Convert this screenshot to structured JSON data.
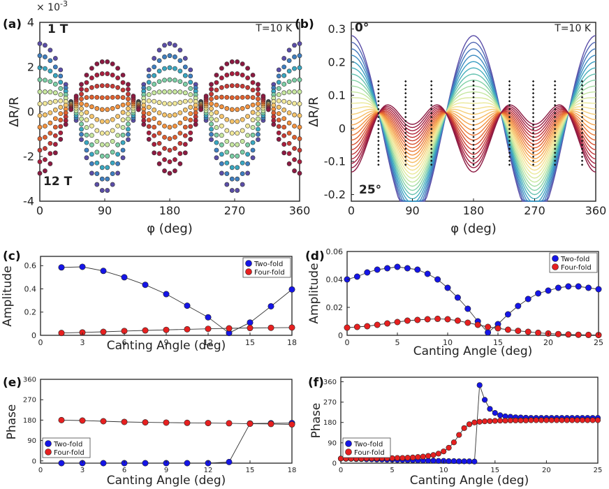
{
  "chart_data": [
    {
      "id": "a",
      "type": "scatter",
      "panel_label": "(a)",
      "xlabel": "φ (deg)",
      "ylabel": "ΔR/R",
      "multiplier": "× 10",
      "multiplier_exp": "-3",
      "xlim": [
        0,
        360
      ],
      "ylim": [
        -4,
        4
      ],
      "xticks": [
        "0",
        "90",
        "180",
        "270",
        "360"
      ],
      "yticks": [
        "-4",
        "-2",
        "0",
        "2",
        "4"
      ],
      "annotations": {
        "top_left": "1 T",
        "bottom_left": "12 T",
        "top_right": "T=10 K"
      },
      "colors": {
        "low_field": "#4a4a8c",
        "high_field": "#8b1a42"
      },
      "series_count": 12,
      "two_fold_amplitude_range": [
        3.3,
        -2.5
      ],
      "four_fold_amplitude": 0.9
    },
    {
      "id": "b",
      "type": "line",
      "panel_label": "(b)",
      "xlabel": "φ (deg)",
      "ylabel": "ΔR/R",
      "xlim": [
        0,
        360
      ],
      "ylim": [
        -0.22,
        0.32
      ],
      "xticks": [
        "0",
        "90",
        "180",
        "270",
        "360"
      ],
      "yticks": [
        "-0.2",
        "-0.1",
        "0",
        "0.1",
        "0.2",
        "0.3"
      ],
      "annotations": {
        "top_left": "0°",
        "bottom_left": "25°",
        "top_right": "T=10 K"
      },
      "colors": {
        "low_angle": "#5a5ab0",
        "high_angle": "#b0184a"
      },
      "series_count": 26
    },
    {
      "id": "c",
      "type": "line",
      "panel_label": "(c)",
      "xlabel": "Canting Angle (deg)",
      "ylabel": "Amplitude",
      "xlim": [
        0,
        18
      ],
      "ylim": [
        0,
        0.68
      ],
      "xticks": [
        "0",
        "3",
        "6",
        "9",
        "12",
        "15",
        "18"
      ],
      "yticks": [
        "0",
        "0.2",
        "0.4",
        "0.6"
      ],
      "legend_position": "top-right",
      "series": [
        {
          "name": "Two-fold",
          "color": "#1515e6",
          "x": [
            1.5,
            3,
            4.5,
            6,
            7.5,
            9,
            10.5,
            12,
            13.5,
            15,
            16.5,
            18
          ],
          "y": [
            0.585,
            0.59,
            0.555,
            0.5,
            0.435,
            0.355,
            0.255,
            0.155,
            0.02,
            0.11,
            0.25,
            0.395
          ]
        },
        {
          "name": "Four-fold",
          "color": "#e62020",
          "x": [
            1.5,
            3,
            4.5,
            6,
            7.5,
            9,
            10.5,
            12,
            13.5,
            15,
            16.5,
            18
          ],
          "y": [
            0.02,
            0.025,
            0.03,
            0.037,
            0.042,
            0.047,
            0.052,
            0.056,
            0.06,
            0.063,
            0.065,
            0.067
          ]
        }
      ]
    },
    {
      "id": "d",
      "type": "line",
      "panel_label": "(d)",
      "xlabel": "Canting Angle (deg)",
      "ylabel": "Amplitude",
      "xlim": [
        0,
        25
      ],
      "ylim": [
        0,
        0.06
      ],
      "xticks": [
        "0",
        "5",
        "10",
        "15",
        "20",
        "25"
      ],
      "yticks": [
        "0",
        "0.02",
        "0.04",
        "0.06"
      ],
      "legend_position": "top-right",
      "series": [
        {
          "name": "Two-fold",
          "color": "#1515e6",
          "x": [
            0,
            1,
            2,
            3,
            4,
            5,
            6,
            7,
            8,
            9,
            10,
            11,
            12,
            13,
            14,
            15,
            16,
            17,
            18,
            19,
            20,
            21,
            22,
            23,
            24,
            25
          ],
          "y": [
            0.04,
            0.042,
            0.045,
            0.047,
            0.048,
            0.049,
            0.048,
            0.047,
            0.044,
            0.04,
            0.034,
            0.027,
            0.019,
            0.01,
            0.002,
            0.008,
            0.015,
            0.021,
            0.026,
            0.03,
            0.032,
            0.034,
            0.035,
            0.035,
            0.034,
            0.033
          ]
        },
        {
          "name": "Four-fold",
          "color": "#e62020",
          "x": [
            0,
            1,
            2,
            3,
            4,
            5,
            6,
            7,
            8,
            9,
            10,
            11,
            12,
            13,
            14,
            15,
            16,
            17,
            18,
            19,
            20,
            21,
            22,
            23,
            24,
            25
          ],
          "y": [
            0.0055,
            0.006,
            0.0065,
            0.0075,
            0.0085,
            0.0095,
            0.0105,
            0.011,
            0.0115,
            0.0118,
            0.0115,
            0.0105,
            0.009,
            0.0075,
            0.006,
            0.005,
            0.004,
            0.0032,
            0.0025,
            0.0018,
            0.0013,
            0.0009,
            0.0006,
            0.0004,
            0.0003,
            0.0002
          ]
        }
      ]
    },
    {
      "id": "e",
      "type": "line",
      "panel_label": "(e)",
      "xlabel": "Canting Angle (deg)",
      "ylabel": "Phase",
      "xlim": [
        0,
        18
      ],
      "ylim": [
        -10,
        360
      ],
      "xticks": [
        "0",
        "3",
        "6",
        "9",
        "12",
        "15",
        "18"
      ],
      "yticks": [
        "0",
        "90",
        "180",
        "270",
        "360"
      ],
      "legend_position": "bottom-left",
      "series": [
        {
          "name": "Two-fold",
          "color": "#1515e6",
          "x": [
            1.5,
            3,
            4.5,
            6,
            7.5,
            9,
            10.5,
            12,
            13.5,
            15,
            16.5,
            18
          ],
          "y": [
            -10,
            -10,
            -10,
            -10,
            -10,
            -10,
            -10,
            -10,
            -5,
            165,
            166,
            167
          ]
        },
        {
          "name": "Four-fold",
          "color": "#e62020",
          "x": [
            1.5,
            3,
            4.5,
            6,
            7.5,
            9,
            10.5,
            12,
            13.5,
            15,
            16.5,
            18
          ],
          "y": [
            180,
            178,
            175,
            172,
            170,
            169,
            168,
            167,
            166,
            164,
            163,
            161
          ]
        }
      ]
    },
    {
      "id": "f",
      "type": "line",
      "panel_label": "(f)",
      "xlabel": "Canting Angle (deg)",
      "ylabel": "Phase",
      "xlim": [
        0,
        25
      ],
      "ylim": [
        0,
        380
      ],
      "xticks": [
        "0",
        "5",
        "10",
        "15",
        "20",
        "25"
      ],
      "yticks": [
        "0",
        "90",
        "180",
        "270",
        "360"
      ],
      "legend_position": "bottom-left",
      "series": [
        {
          "name": "Two-fold",
          "color": "#1515e6",
          "x": [
            0,
            0.5,
            1,
            1.5,
            2,
            2.5,
            3,
            3.5,
            4,
            4.5,
            5,
            5.5,
            6,
            6.5,
            7,
            7.5,
            8,
            8.5,
            9,
            9.5,
            10,
            10.5,
            11,
            11.5,
            12,
            12.5,
            13,
            13.5,
            14,
            14.5,
            15,
            15.5,
            16,
            16.5,
            17,
            17.5,
            18,
            18.5,
            19,
            19.5,
            20,
            20.5,
            21,
            21.5,
            22,
            22.5,
            23,
            23.5,
            24,
            24.5,
            25
          ],
          "y": [
            20,
            19,
            19,
            18,
            18,
            17,
            17,
            16,
            16,
            15,
            15,
            14,
            14,
            13,
            13,
            12,
            12,
            11,
            11,
            10,
            10,
            9,
            9,
            8,
            8,
            8,
            7,
            345,
            280,
            240,
            222,
            212,
            207,
            205,
            203,
            202,
            201,
            200,
            200,
            200,
            200,
            200,
            200,
            200,
            200,
            200,
            200,
            200,
            200,
            200,
            200
          ]
        },
        {
          "name": "Four-fold",
          "color": "#e62020",
          "x": [
            0,
            0.5,
            1,
            1.5,
            2,
            2.5,
            3,
            3.5,
            4,
            4.5,
            5,
            5.5,
            6,
            6.5,
            7,
            7.5,
            8,
            8.5,
            9,
            9.5,
            10,
            10.5,
            11,
            11.5,
            12,
            12.5,
            13,
            13.5,
            14,
            14.5,
            15,
            15.5,
            16,
            16.5,
            17,
            17.5,
            18,
            18.5,
            19,
            19.5,
            20,
            20.5,
            21,
            21.5,
            22,
            22.5,
            23,
            23.5,
            24,
            24.5,
            25
          ],
          "y": [
            20,
            20,
            20,
            20,
            20,
            21,
            21,
            21,
            22,
            22,
            22,
            23,
            23,
            24,
            25,
            27,
            29,
            32,
            36,
            42,
            52,
            68,
            92,
            125,
            155,
            172,
            180,
            183,
            185,
            186,
            187,
            188,
            188,
            189,
            189,
            189,
            189,
            190,
            190,
            190,
            190,
            190,
            190,
            190,
            190,
            190,
            190,
            190,
            190,
            190,
            190
          ]
        }
      ]
    }
  ]
}
